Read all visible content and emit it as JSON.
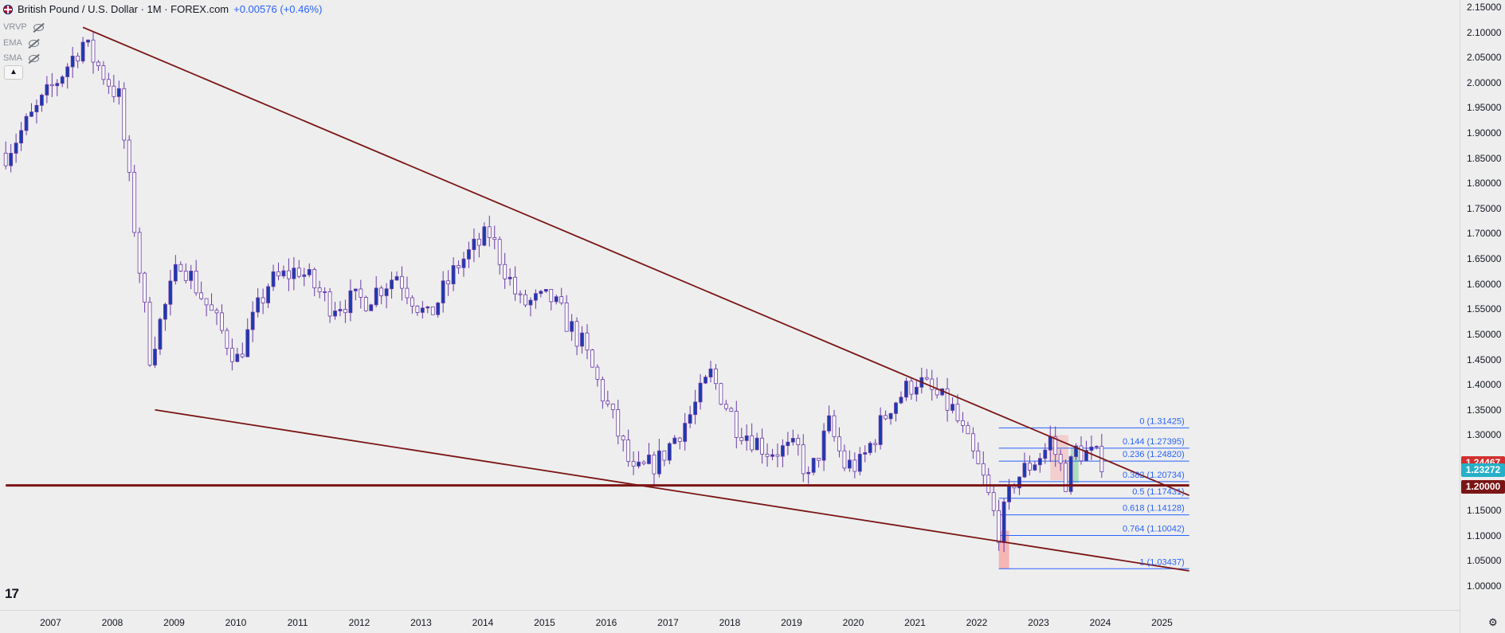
{
  "header": {
    "symbol_title": "British Pound / U.S. Dollar · 1M · FOREX.com",
    "change": "+0.00576 (+0.46%)",
    "indicators": [
      "VRVP",
      "EMA",
      "SMA"
    ],
    "collapse_icon": "chevron-up-icon"
  },
  "colors": {
    "up_candle": "#1a3bb0",
    "down_candle": "#ffffff",
    "candle_outline": "#6a3aa8",
    "trendline": "#7b1515",
    "fib_line": "#2962ff",
    "red_zone": "#f6a6a6",
    "green_zone": "#9ed6b0"
  },
  "price_axis": {
    "ticks": [
      "2.15000",
      "2.10000",
      "2.05000",
      "2.00000",
      "1.95000",
      "1.90000",
      "1.85000",
      "1.80000",
      "1.75000",
      "1.70000",
      "1.65000",
      "1.60000",
      "1.55000",
      "1.50000",
      "1.45000",
      "1.40000",
      "1.35000",
      "1.30000",
      "1.25000",
      "1.20000",
      "1.15000",
      "1.10000",
      "1.05000",
      "1.00000"
    ],
    "tags": [
      {
        "label": "1.24467",
        "color": "#d32f2f"
      },
      {
        "label": "1.23272",
        "color": "#26b0c8"
      },
      {
        "label": "1.20000",
        "color": "#7b1515"
      }
    ]
  },
  "time_axis": {
    "ticks": [
      "2007",
      "2008",
      "2009",
      "2010",
      "2011",
      "2012",
      "2013",
      "2014",
      "2015",
      "2016",
      "2017",
      "2018",
      "2019",
      "2020",
      "2021",
      "2022",
      "2023",
      "2024",
      "2025"
    ]
  },
  "fib_levels": [
    {
      "label": "0 (1.31425)",
      "price": 1.31425
    },
    {
      "label": "0.144 (1.27395)",
      "price": 1.27395
    },
    {
      "label": "0.236 (1.24820)",
      "price": 1.2482
    },
    {
      "label": "0.382 (1.20734)",
      "price": 1.20734
    },
    {
      "label": "0.5 (1.17431)",
      "price": 1.17431
    },
    {
      "label": "0.618 (1.14128)",
      "price": 1.14128
    },
    {
      "label": "0.764 (1.10042)",
      "price": 1.10042
    },
    {
      "label": "1 (1.03437)",
      "price": 1.03437
    }
  ],
  "chart_data": {
    "type": "candlestick",
    "title": "British Pound / U.S. Dollar · 1M · FOREX.com",
    "x_range": [
      "2006-08",
      "2025-10"
    ],
    "ylim": [
      1.0,
      2.15
    ],
    "anchor_path": [
      [
        "2006-08",
        1.86
      ],
      [
        "2007-03",
        1.96
      ],
      [
        "2007-11",
        2.08
      ],
      [
        "2008-06",
        1.97
      ],
      [
        "2008-12",
        1.46
      ],
      [
        "2009-06",
        1.65
      ],
      [
        "2010-05",
        1.45
      ],
      [
        "2010-11",
        1.6
      ],
      [
        "2011-05",
        1.63
      ],
      [
        "2011-11",
        1.56
      ],
      [
        "2012-06",
        1.57
      ],
      [
        "2012-12",
        1.62
      ],
      [
        "2013-06",
        1.53
      ],
      [
        "2013-12",
        1.64
      ],
      [
        "2014-06",
        1.7
      ],
      [
        "2014-12",
        1.56
      ],
      [
        "2015-06",
        1.57
      ],
      [
        "2015-12",
        1.48
      ],
      [
        "2016-06",
        1.33
      ],
      [
        "2016-10",
        1.22
      ],
      [
        "2017-03",
        1.25
      ],
      [
        "2017-09",
        1.34
      ],
      [
        "2018-01",
        1.42
      ],
      [
        "2018-06",
        1.32
      ],
      [
        "2018-12",
        1.27
      ],
      [
        "2019-06",
        1.27
      ],
      [
        "2019-08",
        1.21
      ],
      [
        "2019-12",
        1.32
      ],
      [
        "2020-03",
        1.24
      ],
      [
        "2020-06",
        1.24
      ],
      [
        "2020-12",
        1.36
      ],
      [
        "2021-05",
        1.41
      ],
      [
        "2021-12",
        1.35
      ],
      [
        "2022-06",
        1.21
      ],
      [
        "2022-09",
        1.11
      ],
      [
        "2022-12",
        1.21
      ],
      [
        "2023-06",
        1.27
      ],
      [
        "2023-07",
        1.29
      ],
      [
        "2023-10",
        1.21
      ],
      [
        "2023-12",
        1.27
      ],
      [
        "2024-03",
        1.26
      ],
      [
        "2024-05",
        1.25
      ]
    ],
    "trendlines": [
      {
        "name": "upper",
        "from": [
          "2007-11",
          2.11
        ],
        "to": [
          "2025-10",
          1.18
        ]
      },
      {
        "name": "lower",
        "from": [
          "2009-01",
          1.35
        ],
        "to": [
          "2025-10",
          1.03
        ]
      },
      {
        "name": "horizontal",
        "from": [
          "2006-08",
          1.2
        ],
        "to": [
          "2025-10",
          1.2
        ]
      }
    ],
    "fibonacci": {
      "high": 1.31425,
      "low": 1.03437,
      "from": "2022-09",
      "to": "2025-10"
    }
  }
}
